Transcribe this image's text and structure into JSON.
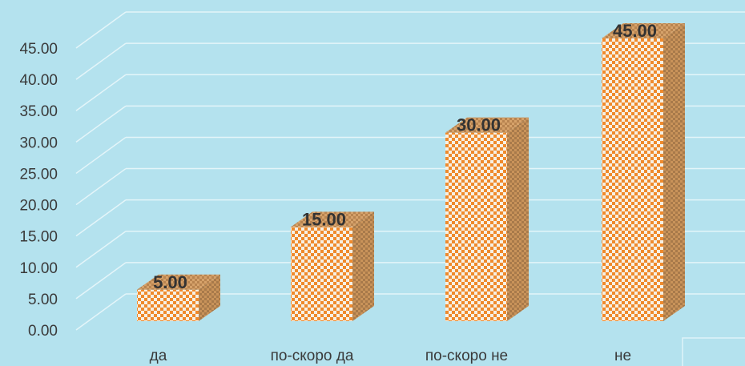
{
  "chart_data": {
    "type": "bar",
    "categories": [
      "да",
      "по-скоро да",
      "по-скоро не",
      "не"
    ],
    "values": [
      5.0,
      15.0,
      30.0,
      45.0
    ],
    "data_labels": [
      "5.00",
      "15.00",
      "30.00",
      "45.00"
    ],
    "yticks": [
      "0.00",
      "5.00",
      "10.00",
      "15.00",
      "20.00",
      "25.00",
      "30.00",
      "35.00",
      "40.00",
      "45.00"
    ],
    "ylim": [
      0,
      45
    ],
    "title": "",
    "xlabel": "",
    "ylabel": "",
    "grid": true,
    "three_d": true,
    "legend": "none",
    "colors": {
      "background": "#b4e2ee",
      "bar_pattern_light": "#f6f0e4",
      "bar_pattern_dark": "#ef8a2c",
      "bar_side": "#a87a4a",
      "bar_top": "#c2915e",
      "gridline": "#e4f5f9"
    }
  }
}
